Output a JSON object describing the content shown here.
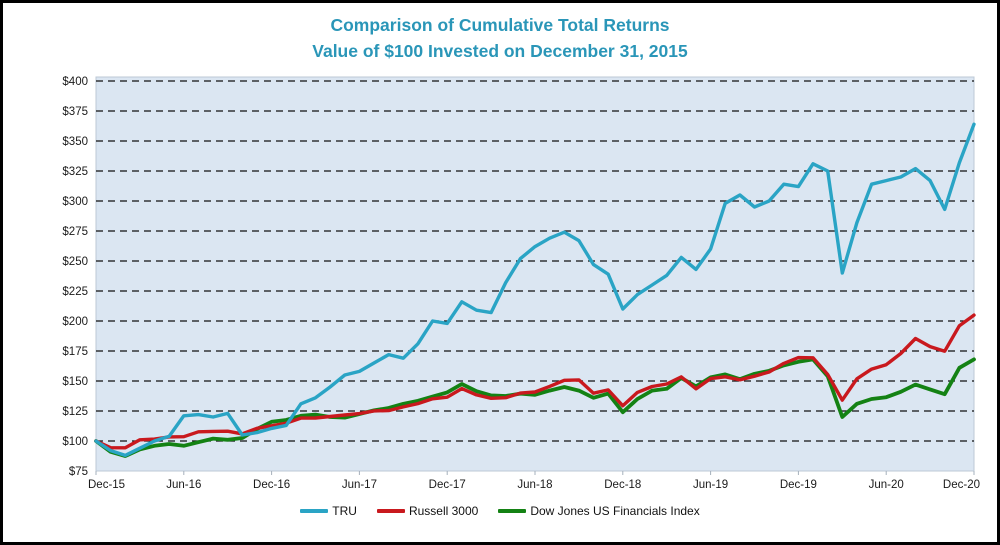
{
  "title": {
    "line1": "Comparison of Cumulative Total Returns",
    "line2": "Value of $100 Invested on December 31, 2015"
  },
  "title_color": "#2a96b8",
  "chart_data": {
    "type": "line",
    "title": "Comparison of Cumulative Total Returns",
    "subtitle": "Value of $100 Invested on December 31, 2015",
    "months_total": 60,
    "x_tick_labels": [
      "Dec-15",
      "Jun-16",
      "Dec-16",
      "Jun-17",
      "Dec-17",
      "Jun-18",
      "Dec-18",
      "Jun-19",
      "Dec-19",
      "Jun-20",
      "Dec-20"
    ],
    "x_tick_month_positions": [
      0,
      6,
      12,
      18,
      24,
      30,
      36,
      42,
      48,
      54,
      60
    ],
    "y_axis": {
      "min": 75,
      "max": 400,
      "step": 25,
      "labels": [
        "$75",
        "$100",
        "$125",
        "$150",
        "$175",
        "$200",
        "$225",
        "$250",
        "$275",
        "$300",
        "$325",
        "$350",
        "$375",
        "$400"
      ]
    },
    "grid": "dashed-black-horizontal",
    "plot_bg_color": "#dbe6f2",
    "plot_border_color": "#bcc8d6",
    "legend_position": "bottom-center",
    "series": [
      {
        "name": "TRU",
        "color": "#2aa4c5",
        "values": [
          100,
          92,
          88,
          94,
          100,
          104,
          121,
          122,
          120,
          123,
          105,
          107,
          110.5,
          113,
          131,
          136,
          145,
          155,
          158,
          165,
          172,
          169,
          181,
          200,
          198,
          216,
          209,
          207,
          232,
          252,
          262,
          269,
          274,
          267,
          247,
          239,
          210,
          222,
          230,
          238,
          253,
          243,
          260,
          298,
          305,
          295,
          300,
          314,
          312,
          331,
          325,
          240,
          282,
          314,
          317,
          320,
          327,
          317,
          293,
          332,
          364
        ]
      },
      {
        "name": "Russell 3000",
        "color": "#c9191e",
        "values": [
          100,
          94.4,
          94.3,
          101,
          101.6,
          103.4,
          103.6,
          107.7,
          108,
          108.2,
          105.9,
          110.6,
          112.7,
          114.8,
          119.1,
          119.2,
          120.4,
          121.7,
          122.8,
          125.1,
          125.3,
          128.4,
          131.2,
          135.2,
          136.5,
          143.7,
          138.4,
          135.6,
          136.1,
          139.9,
          140.8,
          145.5,
          150.6,
          150.9,
          139.8,
          142.6,
          129.3,
          140.5,
          145.4,
          147.5,
          153.4,
          143.5,
          152,
          153.5,
          151,
          154,
          157.5,
          164.7,
          169.5,
          169.3,
          155.4,
          134.1,
          151.8,
          159.9,
          163.6,
          172.9,
          185.4,
          178.7,
          174.8,
          196.1,
          204.9
        ]
      },
      {
        "name": "Dow Jones US Financials Index",
        "color": "#148214",
        "values": [
          100,
          91,
          87.5,
          93,
          96,
          97.5,
          96,
          99,
          102,
          101,
          102.5,
          110,
          116,
          117.5,
          121,
          122,
          120,
          119.5,
          122.5,
          125.5,
          127.5,
          131,
          133.5,
          137,
          140.5,
          147.5,
          141.5,
          138,
          137.5,
          139.5,
          138.5,
          142,
          145,
          142,
          136,
          139.5,
          124,
          135,
          142,
          143.5,
          152.5,
          145.5,
          153,
          155.5,
          151.5,
          156,
          158.5,
          163,
          166,
          168,
          154,
          120,
          131,
          135,
          136.5,
          141,
          147,
          143,
          139,
          161,
          168
        ]
      }
    ]
  }
}
